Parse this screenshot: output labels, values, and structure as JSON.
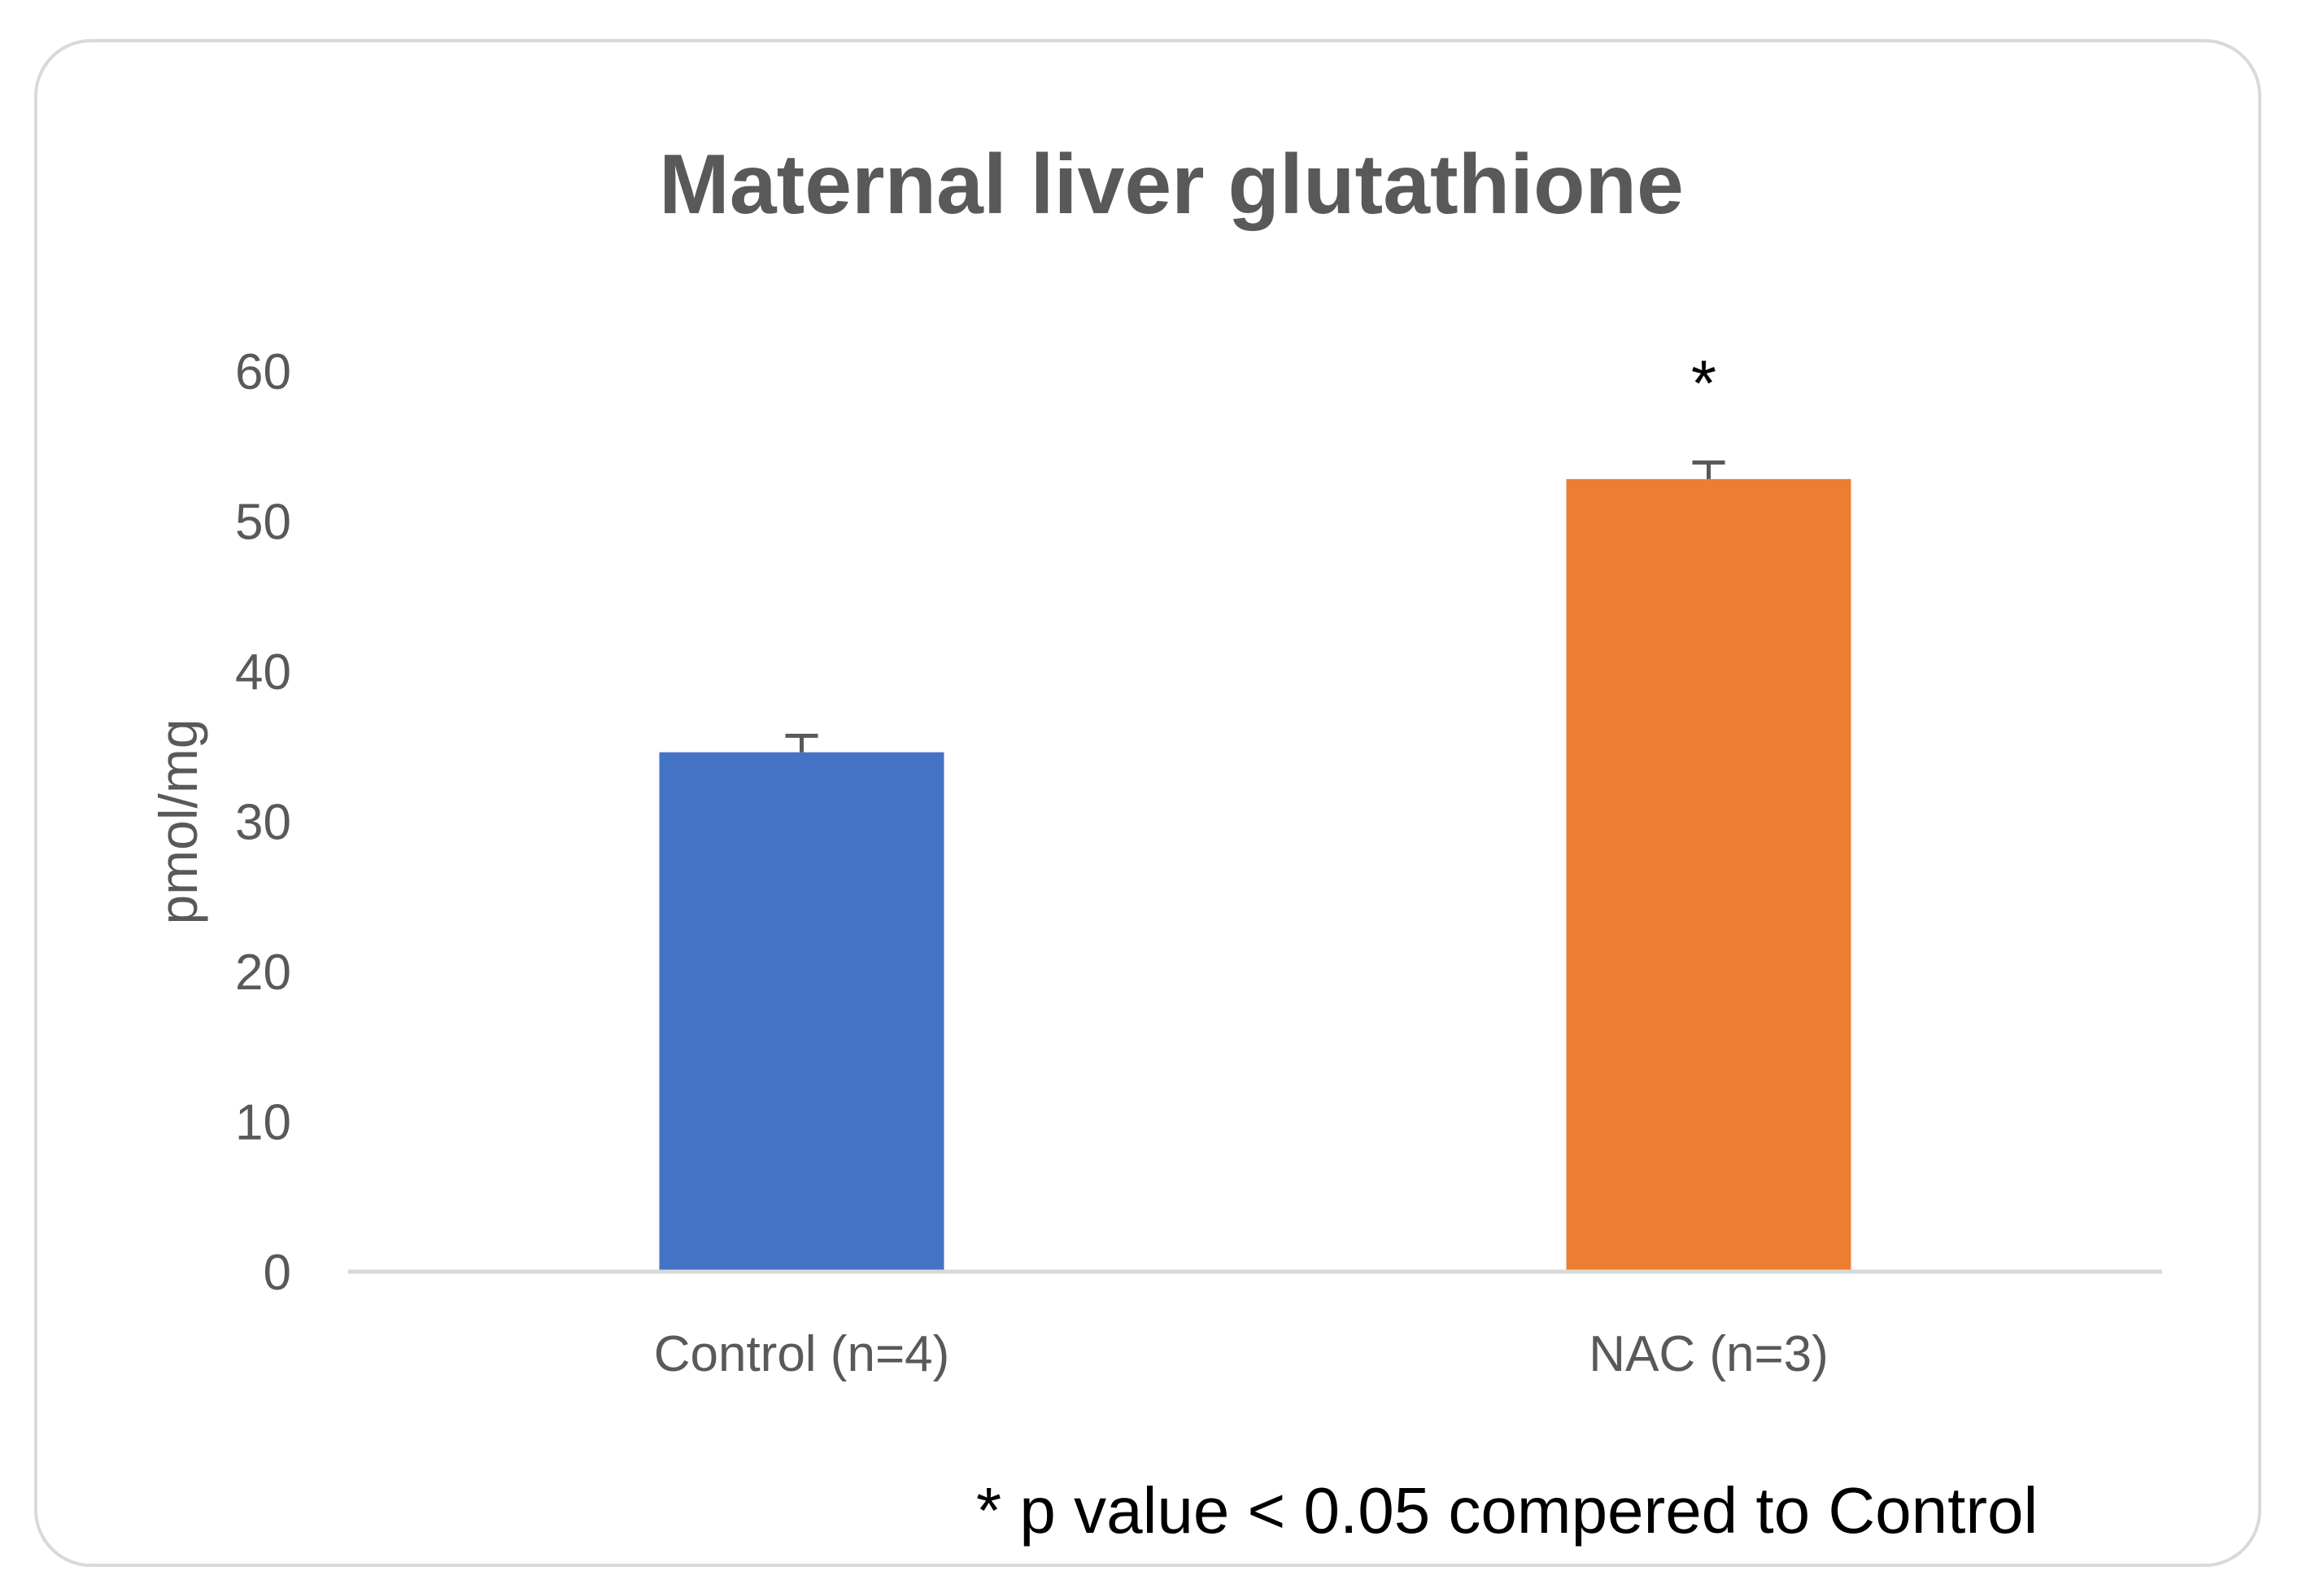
{
  "chart_data": {
    "type": "bar",
    "title": "Maternal liver glutathione",
    "xlabel": "",
    "ylabel": "pmol/mg",
    "ylim": [
      0,
      60
    ],
    "yticks": [
      0,
      10,
      20,
      30,
      40,
      50,
      60
    ],
    "ytick_labels": [
      "0",
      "10",
      "20",
      "30",
      "40",
      "50",
      "60"
    ],
    "categories": [
      "Control (n=4)",
      "NAC (n=3)"
    ],
    "values": [
      34.6,
      52.8
    ],
    "errors": [
      1.1,
      1.1
    ],
    "colors": [
      "#4472C4",
      "#ED7D31"
    ],
    "significance_markers": [
      "",
      "*"
    ],
    "grid": false,
    "legend": "none",
    "footnote": "* p value < 0.05 compered to Control"
  },
  "style": {
    "axis_color": "#d9d9d9",
    "text_color": "#595959",
    "error_bar_color": "#595959"
  }
}
